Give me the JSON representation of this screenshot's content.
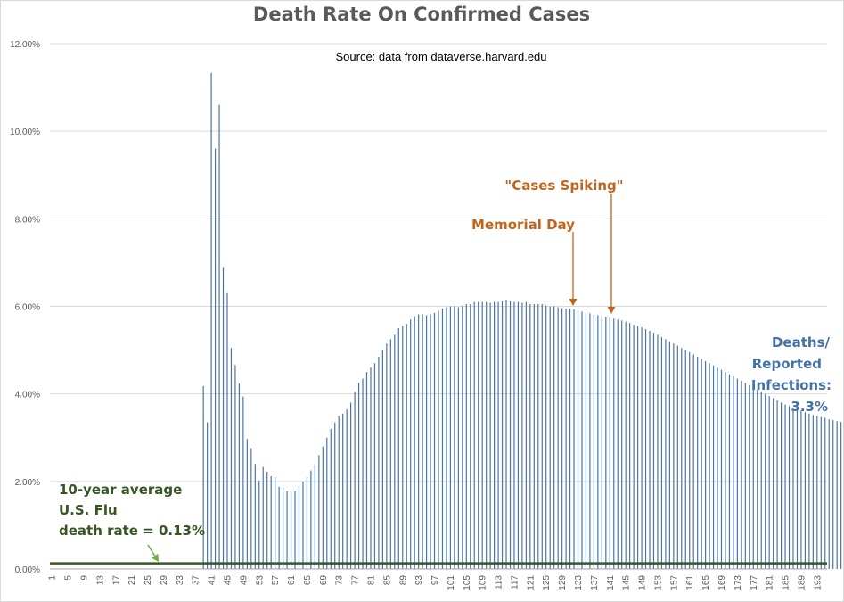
{
  "chart_data": {
    "type": "bar",
    "title": "Death Rate On Confirmed Cases",
    "subtitle": "Source: data from dataverse.harvard.edu",
    "xlabel": "",
    "ylabel": "",
    "ylim": [
      0,
      12
    ],
    "ytick_labels": [
      "0.00%",
      "2.00%",
      "4.00%",
      "6.00%",
      "8.00%",
      "10.00%",
      "12.00%"
    ],
    "ytick_values": [
      0,
      2,
      4,
      6,
      8,
      10,
      12
    ],
    "x_start": 1,
    "x_end": 195,
    "xtick_labels": [
      "1",
      "5",
      "9",
      "13",
      "17",
      "21",
      "25",
      "29",
      "33",
      "37",
      "41",
      "45",
      "49",
      "53",
      "57",
      "61",
      "65",
      "69",
      "73",
      "77",
      "81",
      "85",
      "89",
      "93",
      "97",
      "101",
      "105",
      "109",
      "113",
      "117",
      "121",
      "125",
      "129",
      "133",
      "137",
      "141",
      "145",
      "149",
      "153",
      "157",
      "161",
      "165",
      "169",
      "173",
      "177",
      "181",
      "185",
      "189",
      "193"
    ],
    "grid": true,
    "legend": "none",
    "series": [
      {
        "values": [
          0,
          0,
          0,
          0,
          0,
          0,
          0,
          0,
          0,
          0,
          0,
          0,
          0,
          0,
          0,
          0,
          0,
          0,
          0,
          0,
          0,
          0,
          0,
          0,
          0,
          0,
          0,
          0,
          0,
          0,
          0,
          0,
          0,
          0,
          0,
          0,
          0,
          0,
          4.18,
          3.35,
          11.33,
          9.6,
          10.6,
          6.9,
          6.32,
          5.05,
          4.66,
          4.24,
          3.94,
          2.97,
          2.76,
          2.4,
          2.02,
          2.33,
          2.22,
          2.12,
          2.1,
          1.88,
          1.86,
          1.78,
          1.76,
          1.78,
          1.9,
          2.0,
          2.1,
          2.25,
          2.4,
          2.6,
          2.8,
          3.0,
          3.2,
          3.35,
          3.5,
          3.55,
          3.65,
          3.8,
          4.05,
          4.25,
          4.35,
          4.5,
          4.6,
          4.7,
          4.85,
          5.0,
          5.15,
          5.25,
          5.35,
          5.5,
          5.55,
          5.6,
          5.7,
          5.78,
          5.82,
          5.82,
          5.8,
          5.82,
          5.85,
          5.9,
          5.95,
          5.98,
          6.0,
          6.0,
          5.98,
          6.02,
          6.05,
          6.05,
          6.1,
          6.1,
          6.1,
          6.1,
          6.08,
          6.1,
          6.1,
          6.12,
          6.15,
          6.12,
          6.1,
          6.1,
          6.08,
          6.1,
          6.05,
          6.05,
          6.05,
          6.05,
          6.02,
          6.0,
          6.0,
          5.98,
          5.96,
          5.95,
          5.95,
          5.93,
          5.9,
          5.88,
          5.86,
          5.84,
          5.82,
          5.8,
          5.78,
          5.76,
          5.74,
          5.72,
          5.7,
          5.68,
          5.65,
          5.62,
          5.58,
          5.55,
          5.52,
          5.48,
          5.44,
          5.4,
          5.35,
          5.3,
          5.25,
          5.2,
          5.15,
          5.1,
          5.05,
          5.0,
          4.95,
          4.9,
          4.85,
          4.8,
          4.75,
          4.7,
          4.65,
          4.6,
          4.55,
          4.5,
          4.45,
          4.4,
          4.35,
          4.3,
          4.25,
          4.2,
          4.15,
          4.1,
          4.05,
          4.0,
          3.95,
          3.9,
          3.85,
          3.8,
          3.76,
          3.72,
          3.68,
          3.65,
          3.62,
          3.58,
          3.55,
          3.52,
          3.5,
          3.47,
          3.45,
          3.42,
          3.4,
          3.38,
          3.36,
          3.35,
          3.34,
          3.32
        ]
      }
    ],
    "colors": {
      "bars": "#4a74a8",
      "flu_line": "#375623",
      "gridline": "#d9d9d9",
      "annotation_orange": "#c0651e",
      "annotation_blue": "#4472a6",
      "annotation_green": "#375623",
      "flu_arrow": "#70ad47"
    },
    "flu_reference_value": 0.13,
    "annotations": {
      "cases_spiking": "\"Cases Spiking\"",
      "memorial_day": "Memorial Day",
      "deaths_line1": "Deaths/",
      "deaths_line2": "Reported",
      "deaths_line3": "Infections:",
      "deaths_line4": "3.3%",
      "flu_line1": "10-year average",
      "flu_line2": "U.S. Flu",
      "flu_line3": "death rate = 0.13%"
    }
  }
}
